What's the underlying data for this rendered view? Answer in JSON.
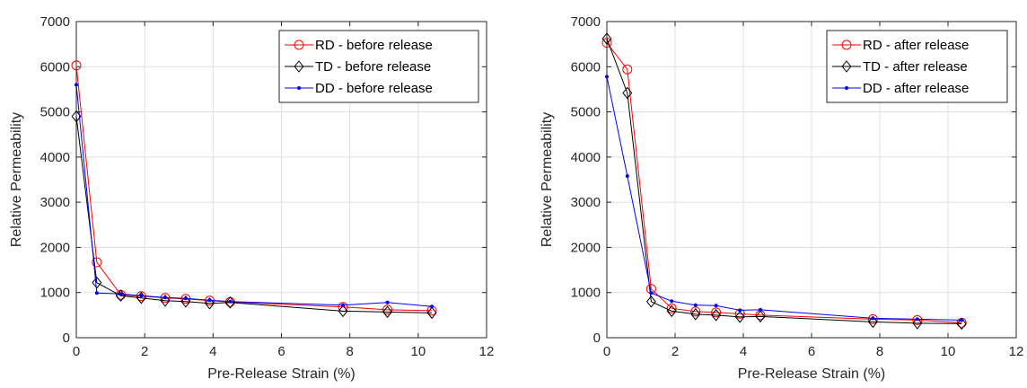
{
  "chart_data": [
    {
      "type": "line",
      "title": "",
      "xlabel": "Pre-Release Strain (%)",
      "ylabel": "Relative Permeability",
      "xlim": [
        0,
        12
      ],
      "ylim": [
        0,
        7000
      ],
      "xticks": [
        "0",
        "2",
        "4",
        "6",
        "8",
        "10",
        "12"
      ],
      "yticks": [
        "0",
        "1000",
        "2000",
        "3000",
        "4000",
        "5000",
        "6000",
        "7000"
      ],
      "grid": true,
      "legend_position": "top-right",
      "series": [
        {
          "name": "RD - before release",
          "color": "#ff0000",
          "marker": "circle",
          "x": [
            0,
            0.6,
            1.3,
            1.9,
            2.6,
            3.2,
            3.9,
            4.5,
            7.8,
            9.1,
            10.4
          ],
          "y": [
            6030,
            1670,
            950,
            920,
            880,
            860,
            820,
            790,
            680,
            620,
            600
          ]
        },
        {
          "name": "TD - before release",
          "color": "#000000",
          "marker": "diamond",
          "x": [
            0,
            0.6,
            1.3,
            1.9,
            2.6,
            3.2,
            3.9,
            4.5,
            7.8,
            9.1,
            10.4
          ],
          "y": [
            4900,
            1220,
            930,
            880,
            820,
            800,
            760,
            780,
            590,
            570,
            550
          ]
        },
        {
          "name": "DD - before release",
          "color": "#0000ff",
          "marker": "dot",
          "x": [
            0,
            0.6,
            1.3,
            1.9,
            2.6,
            3.2,
            3.9,
            4.5,
            7.8,
            9.1,
            10.4
          ],
          "y": [
            5600,
            990,
            970,
            930,
            890,
            870,
            830,
            800,
            720,
            780,
            690
          ]
        }
      ]
    },
    {
      "type": "line",
      "title": "",
      "xlabel": "Pre-Release Strain (%)",
      "ylabel": "Relative Permeability",
      "xlim": [
        0,
        12
      ],
      "ylim": [
        0,
        7000
      ],
      "xticks": [
        "0",
        "2",
        "4",
        "6",
        "8",
        "10",
        "12"
      ],
      "yticks": [
        "0",
        "1000",
        "2000",
        "3000",
        "4000",
        "5000",
        "6000",
        "7000"
      ],
      "grid": true,
      "legend_position": "top-right",
      "series": [
        {
          "name": "RD - after release",
          "color": "#ff0000",
          "marker": "circle",
          "x": [
            0,
            0.6,
            1.3,
            1.9,
            2.6,
            3.2,
            3.9,
            4.5,
            7.8,
            9.1,
            10.4
          ],
          "y": [
            6530,
            5940,
            1080,
            650,
            580,
            560,
            530,
            500,
            410,
            390,
            330
          ]
        },
        {
          "name": "TD - after release",
          "color": "#000000",
          "marker": "diamond",
          "x": [
            0,
            0.6,
            1.3,
            1.9,
            2.6,
            3.2,
            3.9,
            4.5,
            7.8,
            9.1,
            10.4
          ],
          "y": [
            6620,
            5420,
            800,
            590,
            520,
            500,
            460,
            470,
            350,
            320,
            310
          ]
        },
        {
          "name": "DD - after release",
          "color": "#0000ff",
          "marker": "dot",
          "x": [
            0,
            0.6,
            1.3,
            1.9,
            2.6,
            3.2,
            3.9,
            4.5,
            7.8,
            9.1,
            10.4
          ],
          "y": [
            5780,
            3580,
            990,
            810,
            720,
            710,
            610,
            620,
            430,
            410,
            390
          ]
        }
      ]
    }
  ]
}
